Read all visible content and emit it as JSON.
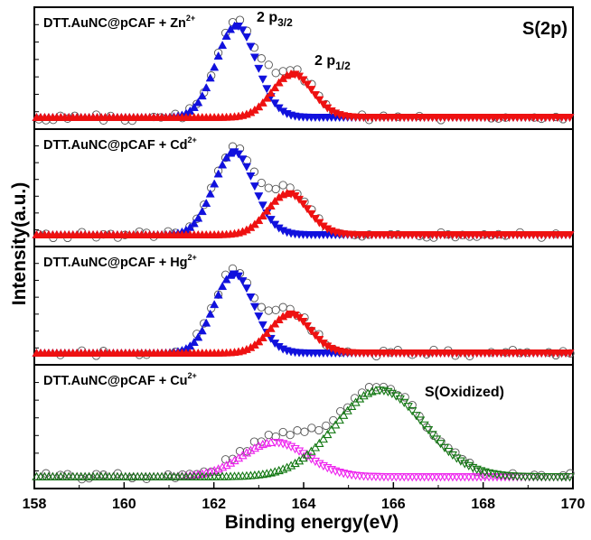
{
  "figure": {
    "overall_title": "S(2p)",
    "xlabel": "Binding energy(eV)",
    "ylabel": "Intensity(a.u.)",
    "xlim": [
      158,
      170
    ],
    "x_ticks": [
      "158",
      "160",
      "162",
      "164",
      "166",
      "168",
      "170"
    ],
    "colors": {
      "2p3/2": "#1111dd",
      "2p1/2": "#ee1111",
      "cu_fit": "#ee22ee",
      "oxidized": "#117711",
      "data": "#555555",
      "frame": "#000000"
    }
  },
  "chart_data": [
    {
      "type": "line",
      "panel_label": "DTT.AuNC@pCAF + Zn",
      "ion_charge": "2+",
      "annotations": [
        {
          "base": "2 p",
          "sub": "3/2"
        },
        {
          "base": "2 p",
          "sub": "1/2"
        }
      ],
      "series": [
        {
          "name": "2 p3/2",
          "kind": "gaussian",
          "center": 162.5,
          "fwhm": 1.05,
          "peak": 0.95
        },
        {
          "name": "2 p1/2",
          "kind": "gaussian",
          "center": 163.75,
          "fwhm": 1.05,
          "peak": 0.45
        }
      ]
    },
    {
      "type": "line",
      "panel_label": "DTT.AuNC@pCAF + Cd",
      "ion_charge": "2+",
      "series": [
        {
          "name": "2 p3/2",
          "kind": "gaussian",
          "center": 162.45,
          "fwhm": 1.05,
          "peak": 0.9
        },
        {
          "name": "2 p1/2",
          "kind": "gaussian",
          "center": 163.65,
          "fwhm": 1.05,
          "peak": 0.45
        }
      ]
    },
    {
      "type": "line",
      "panel_label": "DTT.AuNC@pCAF + Hg",
      "ion_charge": "2+",
      "series": [
        {
          "name": "2 p3/2",
          "kind": "gaussian",
          "center": 162.45,
          "fwhm": 1.05,
          "peak": 0.85
        },
        {
          "name": "2 p1/2",
          "kind": "gaussian",
          "center": 163.7,
          "fwhm": 1.05,
          "peak": 0.42
        }
      ]
    },
    {
      "type": "line",
      "panel_label": "DTT.AuNC@pCAF + Cu",
      "ion_charge": "2+",
      "annotations": [
        {
          "text": "S(Oxidized)"
        }
      ],
      "series": [
        {
          "name": "S",
          "kind": "gaussian",
          "center": 163.35,
          "fwhm": 1.7,
          "peak": 0.35
        },
        {
          "name": "S(Oxidized)",
          "kind": "gaussian",
          "center": 165.7,
          "fwhm": 2.3,
          "peak": 0.88
        }
      ]
    }
  ]
}
